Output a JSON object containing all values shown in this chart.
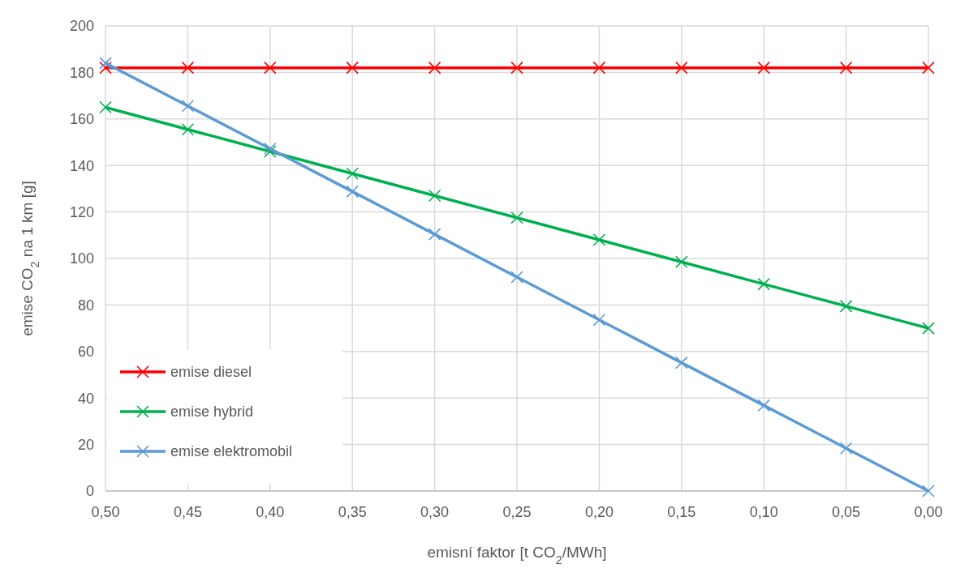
{
  "chart_data": {
    "type": "line",
    "xlabel": "emisní faktor [t CO$_{2}$/MWh]",
    "ylabel": "emise CO$_{2}$ na 1 km [g]",
    "categories": [
      "0,50",
      "0,45",
      "0,40",
      "0,35",
      "0,30",
      "0,25",
      "0,20",
      "0,15",
      "0,10",
      "0,05",
      "0,00"
    ],
    "series": [
      {
        "name": "emise diesel",
        "color": "#ff0000",
        "values": [
          182,
          182,
          182,
          182,
          182,
          182,
          182,
          182,
          182,
          182,
          182
        ]
      },
      {
        "name": "emise hybrid",
        "color": "#00b050",
        "values": [
          165,
          155.5,
          146,
          136.5,
          127,
          117.5,
          108,
          98.5,
          89,
          79.5,
          70
        ]
      },
      {
        "name": "emise elektromobil",
        "color": "#5b9bd5",
        "values": [
          184,
          165.6,
          147.2,
          128.8,
          110.4,
          92,
          73.6,
          55.2,
          36.8,
          18.4,
          0
        ]
      }
    ],
    "ylim": [
      0,
      200
    ],
    "yticks": [
      0,
      20,
      40,
      60,
      80,
      100,
      120,
      140,
      160,
      180,
      200
    ],
    "grid": true,
    "legend": "bottom left",
    "marker": "cross",
    "line_style": "solid"
  }
}
